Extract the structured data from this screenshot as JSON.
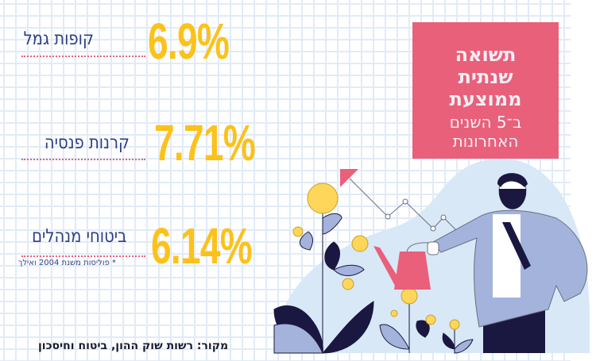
{
  "rows": [
    {
      "label": "קופות גמל",
      "value": "6.9%"
    },
    {
      "label": "קרנות פנסיה",
      "value": "7.71%"
    },
    {
      "label": "ביטוחי מנהלים",
      "value": "6.14%",
      "note": "* פוליסות משנת 2004 ואילך"
    }
  ],
  "box": {
    "title_lines": [
      "תשואה",
      "שנתית",
      "ממוצעת"
    ],
    "subtitle_lines": [
      "ב־5 השנים",
      "האחרונות"
    ]
  },
  "source": "מקור: רשות שוק ההון, ביטוח וחיסכון",
  "colors": {
    "accent": "#fcc21b",
    "box": "#e8607a",
    "label": "#2d3f86"
  }
}
